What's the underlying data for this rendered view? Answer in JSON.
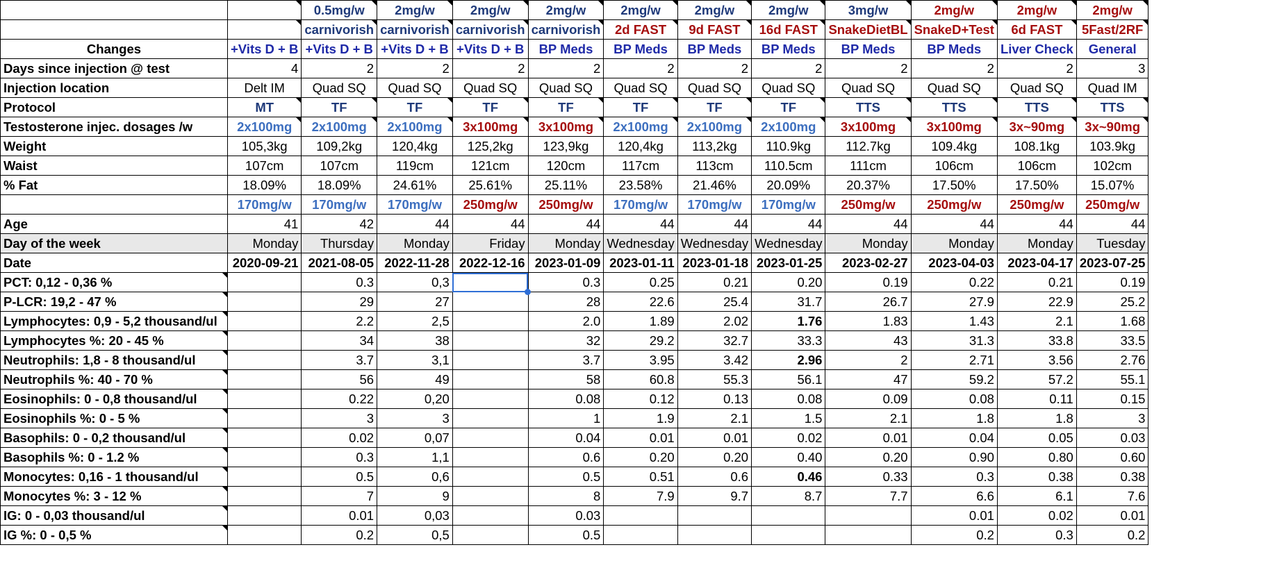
{
  "colors": {
    "blue": "#1f2aa8",
    "red": "#a50e0e",
    "navy": "#1f3a7a",
    "lightblue": "#3d6fbf",
    "selection": "#2f6fd6"
  },
  "header_rows": [
    {
      "label": "",
      "cells": [
        {
          "t": ""
        },
        {
          "t": "0.5mg/w",
          "c": "navy"
        },
        {
          "t": "2mg/w",
          "c": "navy"
        },
        {
          "t": "2mg/w",
          "c": "navy"
        },
        {
          "t": "2mg/w",
          "c": "navy"
        },
        {
          "t": "2mg/w",
          "c": "navy"
        },
        {
          "t": "2mg/w",
          "c": "navy"
        },
        {
          "t": "2mg/w",
          "c": "navy"
        },
        {
          "t": "3mg/w",
          "c": "navy"
        },
        {
          "t": "2mg/w",
          "c": "red"
        },
        {
          "t": "2mg/w",
          "c": "red"
        },
        {
          "t": "2mg/w",
          "c": "red"
        }
      ]
    },
    {
      "label": "",
      "cells": [
        {
          "t": ""
        },
        {
          "t": "carnivorish",
          "c": "navy"
        },
        {
          "t": "carnivorish",
          "c": "navy"
        },
        {
          "t": "carnivorish",
          "c": "navy"
        },
        {
          "t": "carnivorish",
          "c": "navy"
        },
        {
          "t": "2d FAST",
          "c": "red"
        },
        {
          "t": "9d FAST",
          "c": "red"
        },
        {
          "t": "16d FAST",
          "c": "red"
        },
        {
          "t": "SnakeDietBL",
          "c": "red"
        },
        {
          "t": "SnakeD+Test",
          "c": "red"
        },
        {
          "t": "6d FAST",
          "c": "red"
        },
        {
          "t": "5Fast/2RF",
          "c": "red"
        }
      ]
    },
    {
      "label": "Changes",
      "labelAlign": "center",
      "cells": [
        {
          "t": "+Vits D + B",
          "c": "blue"
        },
        {
          "t": "+Vits D + B",
          "c": "blue"
        },
        {
          "t": "+Vits D + B",
          "c": "blue"
        },
        {
          "t": "+Vits D + B",
          "c": "blue"
        },
        {
          "t": "BP Meds",
          "c": "blue"
        },
        {
          "t": "BP Meds",
          "c": "blue"
        },
        {
          "t": "BP Meds",
          "c": "blue"
        },
        {
          "t": "BP Meds",
          "c": "blue"
        },
        {
          "t": "BP Meds",
          "c": "blue"
        },
        {
          "t": "BP Meds",
          "c": "blue"
        },
        {
          "t": "Liver Check",
          "c": "blue"
        },
        {
          "t": "General",
          "c": "blue"
        }
      ]
    },
    {
      "label": "Days since injection @ test",
      "align": "right",
      "cells": [
        {
          "t": "4"
        },
        {
          "t": "2"
        },
        {
          "t": "2"
        },
        {
          "t": "2"
        },
        {
          "t": "2"
        },
        {
          "t": "2"
        },
        {
          "t": "2"
        },
        {
          "t": "2"
        },
        {
          "t": "2"
        },
        {
          "t": "2"
        },
        {
          "t": "2"
        },
        {
          "t": "3"
        }
      ]
    },
    {
      "label": "Injection location",
      "align": "center",
      "cells": [
        {
          "t": "Delt IM"
        },
        {
          "t": "Quad SQ"
        },
        {
          "t": "Quad SQ"
        },
        {
          "t": "Quad SQ"
        },
        {
          "t": "Quad SQ"
        },
        {
          "t": "Quad SQ"
        },
        {
          "t": "Quad SQ"
        },
        {
          "t": "Quad SQ"
        },
        {
          "t": "Quad SQ"
        },
        {
          "t": "Quad SQ"
        },
        {
          "t": "Quad SQ"
        },
        {
          "t": "Quad IM"
        }
      ]
    },
    {
      "label": "Protocol",
      "align": "center",
      "cells": [
        {
          "t": "MT",
          "c": "navy",
          "b": true
        },
        {
          "t": "TF",
          "c": "navy",
          "b": true
        },
        {
          "t": "TF",
          "c": "navy",
          "b": true
        },
        {
          "t": "TF",
          "c": "navy",
          "b": true
        },
        {
          "t": "TF",
          "c": "navy",
          "b": true
        },
        {
          "t": "TF",
          "c": "navy",
          "b": true
        },
        {
          "t": "TF",
          "c": "navy",
          "b": true
        },
        {
          "t": "TF",
          "c": "navy",
          "b": true
        },
        {
          "t": "TTS",
          "c": "navy",
          "b": true
        },
        {
          "t": "TTS",
          "c": "navy",
          "b": true
        },
        {
          "t": "TTS",
          "c": "navy",
          "b": true
        },
        {
          "t": "TTS",
          "c": "navy",
          "b": true
        }
      ]
    },
    {
      "label": "Testosterone injec. dosages /w",
      "align": "center",
      "cells": [
        {
          "t": "2x100mg",
          "c": "lightblue",
          "b": true
        },
        {
          "t": "2x100mg",
          "c": "lightblue",
          "b": true
        },
        {
          "t": "2x100mg",
          "c": "lightblue",
          "b": true
        },
        {
          "t": "3x100mg",
          "c": "red",
          "b": true
        },
        {
          "t": "3x100mg",
          "c": "red",
          "b": true
        },
        {
          "t": "2x100mg",
          "c": "lightblue",
          "b": true
        },
        {
          "t": "2x100mg",
          "c": "lightblue",
          "b": true
        },
        {
          "t": "2x100mg",
          "c": "lightblue",
          "b": true
        },
        {
          "t": "3x100mg",
          "c": "red",
          "b": true
        },
        {
          "t": "3x100mg",
          "c": "red",
          "b": true
        },
        {
          "t": "3x~90mg",
          "c": "red",
          "b": true
        },
        {
          "t": "3x~90mg",
          "c": "red",
          "b": true
        }
      ]
    },
    {
      "label": "Weight",
      "align": "center",
      "cells": [
        {
          "t": "105,3kg"
        },
        {
          "t": "109,2kg"
        },
        {
          "t": "120,4kg"
        },
        {
          "t": "125,2kg"
        },
        {
          "t": "123,9kg"
        },
        {
          "t": "120,4kg"
        },
        {
          "t": "113,2kg"
        },
        {
          "t": "110.9kg"
        },
        {
          "t": "112.7kg"
        },
        {
          "t": "109.4kg"
        },
        {
          "t": "108.1kg"
        },
        {
          "t": "103.9kg"
        }
      ]
    },
    {
      "label": "Waist",
      "align": "center",
      "cells": [
        {
          "t": "107cm"
        },
        {
          "t": "107cm"
        },
        {
          "t": "119cm"
        },
        {
          "t": "121cm"
        },
        {
          "t": "120cm"
        },
        {
          "t": "117cm"
        },
        {
          "t": "113cm"
        },
        {
          "t": "110.5cm"
        },
        {
          "t": "111cm"
        },
        {
          "t": "106cm"
        },
        {
          "t": "106cm"
        },
        {
          "t": "102cm"
        }
      ]
    },
    {
      "label": "% Fat",
      "align": "center",
      "cells": [
        {
          "t": "18.09%"
        },
        {
          "t": "18.09%"
        },
        {
          "t": "24.61%"
        },
        {
          "t": "25.61%"
        },
        {
          "t": "25.11%"
        },
        {
          "t": "23.58%"
        },
        {
          "t": "21.46%"
        },
        {
          "t": "20.09%"
        },
        {
          "t": "20.37%"
        },
        {
          "t": "17.50%"
        },
        {
          "t": "17.50%"
        },
        {
          "t": "15.07%"
        }
      ]
    },
    {
      "label": "",
      "align": "center",
      "cells": [
        {
          "t": "170mg/w",
          "c": "lightblue",
          "b": true
        },
        {
          "t": "170mg/w",
          "c": "lightblue",
          "b": true
        },
        {
          "t": "170mg/w",
          "c": "lightblue",
          "b": true
        },
        {
          "t": "250mg/w",
          "c": "red",
          "b": true
        },
        {
          "t": "250mg/w",
          "c": "red",
          "b": true
        },
        {
          "t": "170mg/w",
          "c": "lightblue",
          "b": true
        },
        {
          "t": "170mg/w",
          "c": "lightblue",
          "b": true
        },
        {
          "t": "170mg/w",
          "c": "lightblue",
          "b": true
        },
        {
          "t": "250mg/w",
          "c": "red",
          "b": true
        },
        {
          "t": "250mg/w",
          "c": "red",
          "b": true
        },
        {
          "t": "250mg/w",
          "c": "red",
          "b": true
        },
        {
          "t": "250mg/w",
          "c": "red",
          "b": true
        }
      ]
    },
    {
      "label": "Age",
      "align": "right",
      "cells": [
        {
          "t": "41"
        },
        {
          "t": "42"
        },
        {
          "t": "44"
        },
        {
          "t": "44"
        },
        {
          "t": "44"
        },
        {
          "t": "44"
        },
        {
          "t": "44"
        },
        {
          "t": "44"
        },
        {
          "t": "44"
        },
        {
          "t": "44"
        },
        {
          "t": "44"
        },
        {
          "t": "44"
        }
      ]
    },
    {
      "label": "Day of the week",
      "align": "right",
      "gray": true,
      "cells": [
        {
          "t": "Monday"
        },
        {
          "t": "Thursday"
        },
        {
          "t": "Monday"
        },
        {
          "t": "Friday"
        },
        {
          "t": "Monday"
        },
        {
          "t": "Wednesday"
        },
        {
          "t": "Wednesday"
        },
        {
          "t": "Wednesday"
        },
        {
          "t": "Monday"
        },
        {
          "t": "Monday"
        },
        {
          "t": "Monday"
        },
        {
          "t": "Tuesday"
        }
      ]
    },
    {
      "label": "Date",
      "align": "right",
      "boldcells": true,
      "cells": [
        {
          "t": "2020-09-21"
        },
        {
          "t": "2021-08-05"
        },
        {
          "t": "2022-11-28"
        },
        {
          "t": "2022-12-16"
        },
        {
          "t": "2023-01-09"
        },
        {
          "t": "2023-01-11"
        },
        {
          "t": "2023-01-18"
        },
        {
          "t": "2023-01-25"
        },
        {
          "t": "2023-02-27"
        },
        {
          "t": "2023-04-03"
        },
        {
          "t": "2023-04-17"
        },
        {
          "t": "2023-07-25"
        }
      ]
    }
  ],
  "data_rows": [
    {
      "label": "PCT: 0,12 - 0,36 %",
      "cells": [
        "",
        "0.3",
        "0,3",
        "",
        "0.3",
        "0.25",
        "0.21",
        "0.20",
        "0.19",
        "0.22",
        "0.21",
        "0.19"
      ]
    },
    {
      "label": "P-LCR: 19,2 - 47 %",
      "cells": [
        "",
        "29",
        "27",
        "",
        "28",
        "22.6",
        "25.4",
        "31.7",
        "26.7",
        "27.9",
        "22.9",
        "25.2"
      ]
    },
    {
      "label": "Lymphocytes: 0,9 - 5,2 thousand/ul",
      "cells": [
        "",
        "2.2",
        "2,5",
        "",
        "2.0",
        "1.89",
        "2.02",
        "1.76",
        "1.83",
        "1.43",
        "2.1",
        "1.68"
      ],
      "bold": [
        7
      ]
    },
    {
      "label": "Lymphocytes %: 20 - 45 %",
      "cells": [
        "",
        "34",
        "38",
        "",
        "32",
        "29.2",
        "32.7",
        "33.3",
        "43",
        "31.3",
        "33.8",
        "33.5"
      ]
    },
    {
      "label": "Neutrophils: 1,8 - 8 thousand/ul",
      "cells": [
        "",
        "3.7",
        "3,1",
        "",
        "3.7",
        "3.95",
        "3.42",
        "2.96",
        "2",
        "2.71",
        "3.56",
        "2.76"
      ],
      "bold": [
        7
      ]
    },
    {
      "label": "Neutrophils %: 40 - 70 %",
      "cells": [
        "",
        "56",
        "49",
        "",
        "58",
        "60.8",
        "55.3",
        "56.1",
        "47",
        "59.2",
        "57.2",
        "55.1"
      ]
    },
    {
      "label": "Eosinophils: 0 - 0,8 thousand/ul",
      "cells": [
        "",
        "0.22",
        "0,20",
        "",
        "0.08",
        "0.12",
        "0.13",
        "0.08",
        "0.09",
        "0.08",
        "0.11",
        "0.15"
      ]
    },
    {
      "label": "Eosinophils %: 0 - 5 %",
      "cells": [
        "",
        "3",
        "3",
        "",
        "1",
        "1.9",
        "2.1",
        "1.5",
        "2.1",
        "1.8",
        "1.8",
        "3"
      ]
    },
    {
      "label": "Basophils: 0 - 0,2 thousand/ul",
      "cells": [
        "",
        "0.02",
        "0,07",
        "",
        "0.04",
        "0.01",
        "0.01",
        "0.02",
        "0.01",
        "0.04",
        "0.05",
        "0.03"
      ]
    },
    {
      "label": "Basophils %: 0 - 1.2 %",
      "cells": [
        "",
        "0.3",
        "1,1",
        "",
        "0.6",
        "0.20",
        "0.20",
        "0.40",
        "0.20",
        "0.90",
        "0.80",
        "0.60"
      ]
    },
    {
      "label": "Monocytes: 0,16 - 1 thousand/ul",
      "cells": [
        "",
        "0.5",
        "0,6",
        "",
        "0.5",
        "0.51",
        "0.6",
        "0.46",
        "0.33",
        "0.3",
        "0.38",
        "0.38"
      ],
      "bold": [
        7
      ]
    },
    {
      "label": "Monocytes %: 3 - 12 %",
      "cells": [
        "",
        "7",
        "9",
        "",
        "8",
        "7.9",
        "9.7",
        "8.7",
        "7.7",
        "6.6",
        "6.1",
        "7.6"
      ]
    },
    {
      "label": "IG: 0 - 0,03 thousand/ul",
      "cells": [
        "",
        "0.01",
        "0,03",
        "",
        "0.03",
        "",
        "",
        "",
        "",
        "0.01",
        "0.02",
        "0.01"
      ]
    },
    {
      "label": "IG %: 0 - 0,5 %",
      "cells": [
        "",
        "0.2",
        "0,5",
        "",
        "0.5",
        "",
        "",
        "",
        "",
        "0.2",
        "0.3",
        "0.2"
      ]
    }
  ]
}
